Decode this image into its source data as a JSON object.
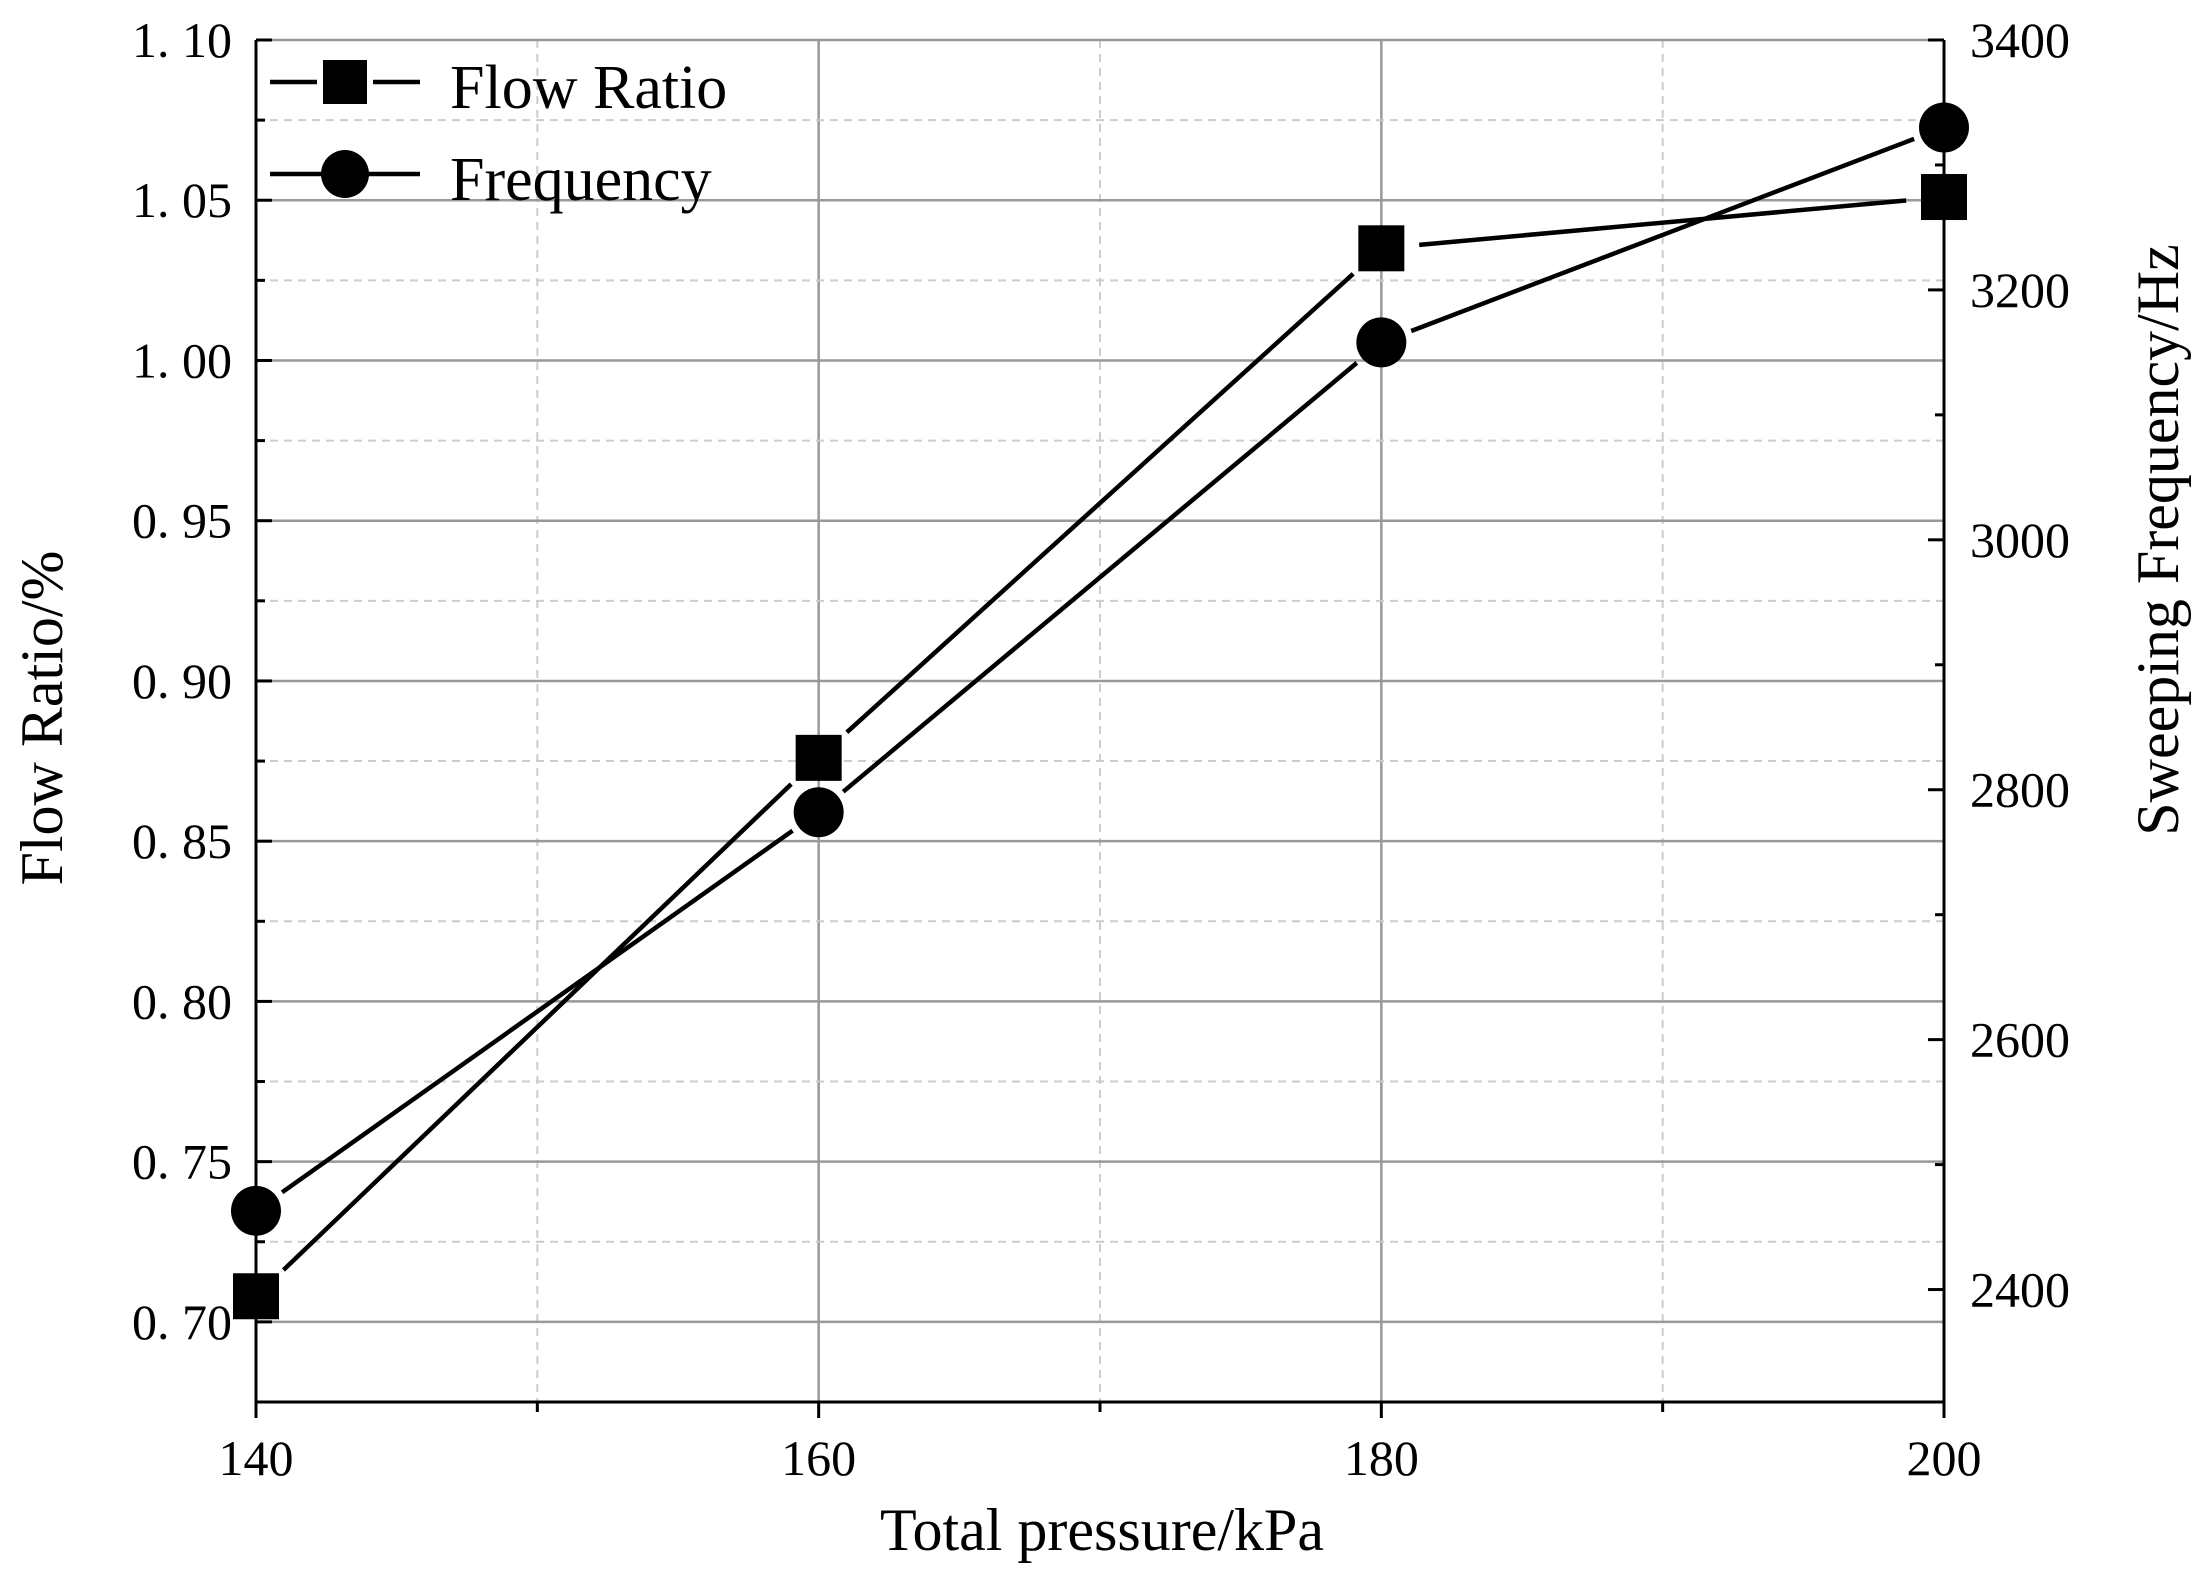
{
  "chart_data": {
    "type": "line",
    "x": [
      140,
      160,
      180,
      200
    ],
    "xlim": [
      140,
      200
    ],
    "xticks": [
      140,
      160,
      180,
      200
    ],
    "xtick_labels": [
      "140",
      "160",
      "180",
      "200"
    ],
    "xlabel": "Total pressure/kPa",
    "ylim_left": [
      0.675,
      1.1
    ],
    "yticks_left": [
      0.7,
      0.75,
      0.8,
      0.85,
      0.9,
      0.95,
      1.0,
      1.05,
      1.1
    ],
    "ytick_labels_left": [
      "0. 70",
      "0. 75",
      "0. 80",
      "0. 85",
      "0. 90",
      "0. 95",
      "1. 00",
      "1. 05",
      "1. 10"
    ],
    "ylabel_left": "Flow Ratio/%",
    "ylim_right": [
      2310,
      3400
    ],
    "yticks_right": [
      2400,
      2600,
      2800,
      3000,
      3200,
      3400
    ],
    "ytick_labels_right": [
      "2400",
      "2600",
      "2800",
      "3000",
      "3200",
      "3400"
    ],
    "ylabel_right": "Sweeping Frequency/Hz",
    "grid": true,
    "legend_position": "top-left",
    "series": [
      {
        "name": "Flow Ratio",
        "axis": "left",
        "marker": "square",
        "values": [
          0.708,
          0.876,
          1.035,
          1.051
        ]
      },
      {
        "name": "Frequency",
        "axis": "right",
        "marker": "circle",
        "values": [
          2463,
          2782,
          3158,
          3330
        ]
      }
    ]
  }
}
